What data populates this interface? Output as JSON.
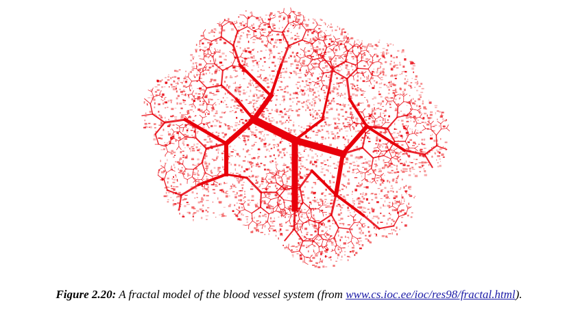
{
  "figure": {
    "label": "Figure 2.20:",
    "caption_text": " A fractal model of the blood vessel system (from ",
    "link_text": "www.cs.ioc.ee/ioc/res98/fractal.html",
    "caption_end": ").",
    "vessel_color": "#e8000b",
    "speckle_color": "#f26060"
  }
}
